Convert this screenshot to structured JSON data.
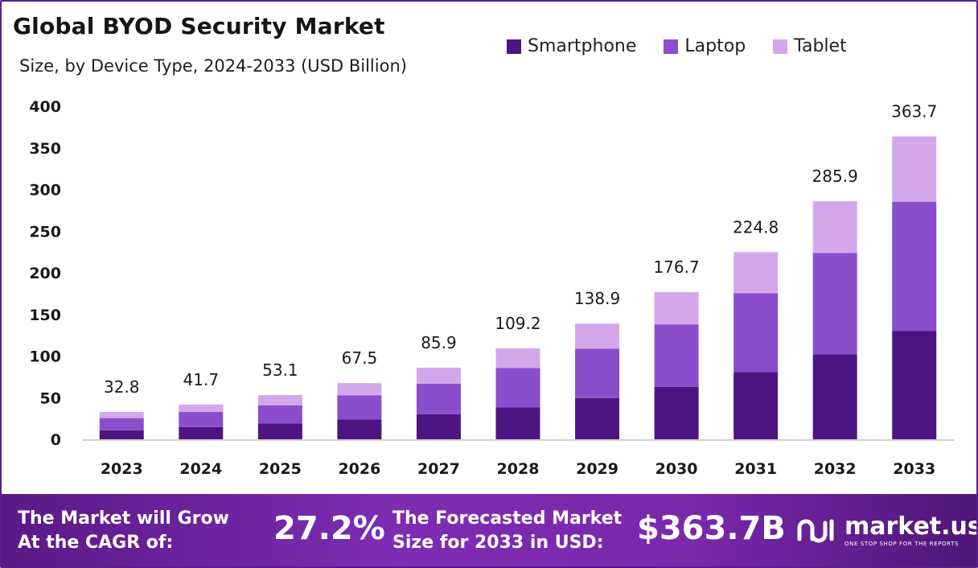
{
  "chart_data": {
    "type": "bar",
    "stacked": true,
    "title": "Global BYOD Security Market",
    "subtitle": "Size, by Device Type, 2024-2033 (USD Billion)",
    "categories": [
      "2023",
      "2024",
      "2025",
      "2026",
      "2027",
      "2028",
      "2029",
      "2030",
      "2031",
      "2032",
      "2033"
    ],
    "series": [
      {
        "name": "Smartphone",
        "color": "#4e1582",
        "values": [
          10.8,
          14.7,
          18.9,
          23.7,
          30.2,
          38.5,
          49.6,
          63.1,
          80.6,
          102.0,
          130.3
        ]
      },
      {
        "name": "Laptop",
        "color": "#8b4dcc",
        "values": [
          14.7,
          18.1,
          21.9,
          29.2,
          36.5,
          47.2,
          59.3,
          74.9,
          94.8,
          121.9,
          155.0
        ]
      },
      {
        "name": "Tablet",
        "color": "#d2a8ea",
        "values": [
          7.3,
          8.9,
          12.3,
          14.6,
          19.2,
          23.5,
          30.0,
          38.7,
          49.4,
          62.0,
          78.4
        ]
      }
    ],
    "totals": [
      "32.8",
      "41.7",
      "53.1",
      "67.5",
      "85.9",
      "109.2",
      "138.9",
      "176.7",
      "224.8",
      "285.9",
      "363.7"
    ],
    "yticks": [
      "0",
      "50",
      "100",
      "150",
      "200",
      "250",
      "300",
      "350",
      "400"
    ],
    "ylim": [
      0,
      400
    ],
    "legend_position": "top-right",
    "grid": false
  },
  "footer": {
    "cagr_label_1": "The Market will Grow",
    "cagr_label_2": "At the CAGR of:",
    "cagr_value": "27.2%",
    "forecast_label_1": "The Forecasted Market",
    "forecast_label_2": "Size for 2033 in USD:",
    "forecast_value": "$363.7B",
    "brand_name": "market.us",
    "brand_tagline": "ONE STOP SHOP FOR THE REPORTS"
  }
}
